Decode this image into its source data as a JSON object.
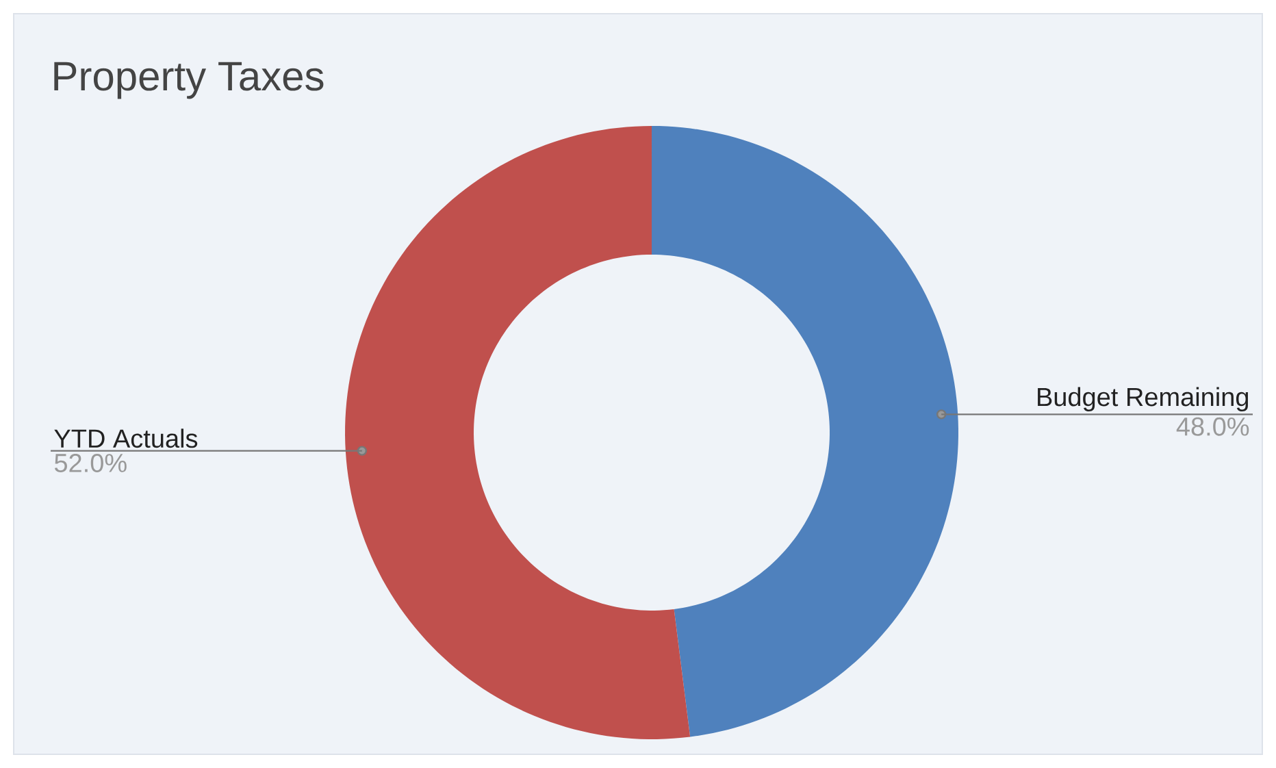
{
  "chart_data": {
    "type": "donut",
    "title": "Property Taxes",
    "categories": [
      "Budget Remaining",
      "YTD Actuals"
    ],
    "values": [
      48,
      52
    ],
    "value_labels": [
      "48.0%",
      "52.0%"
    ],
    "colors": [
      "#4f81bd",
      "#c0504d"
    ]
  }
}
